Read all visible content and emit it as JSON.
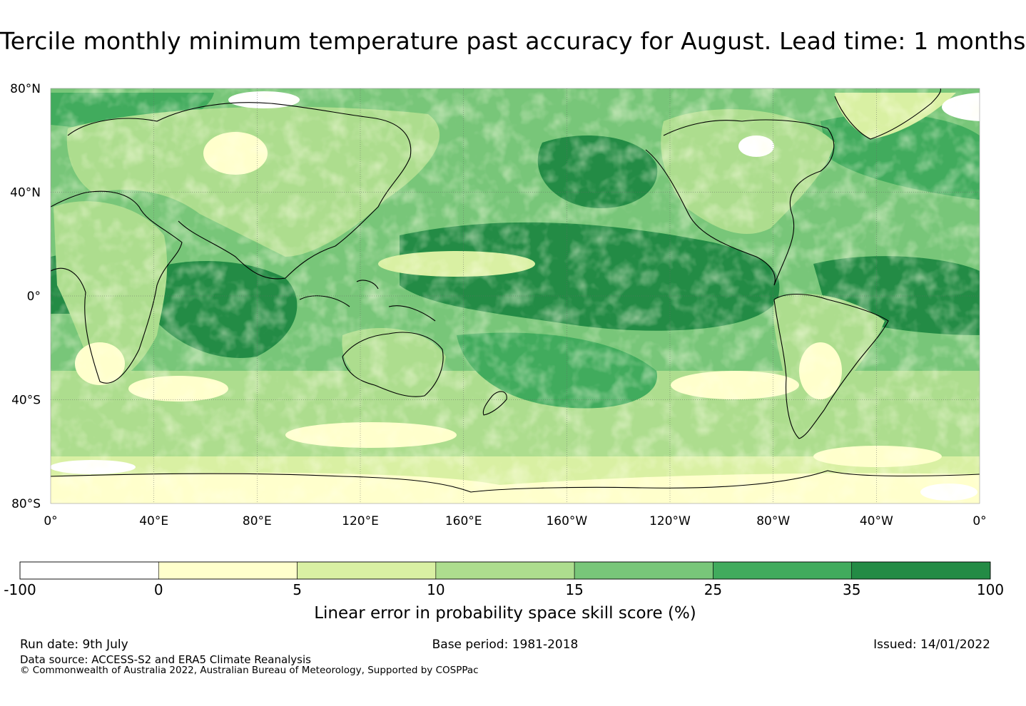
{
  "title": "Tercile monthly minimum temperature past accuracy for August. Lead time: 1 months",
  "map": {
    "lat_labels": [
      "80°N",
      "40°N",
      "0°",
      "40°S",
      "80°S"
    ],
    "lon_labels": [
      "0°",
      "40°E",
      "80°E",
      "120°E",
      "160°E",
      "160°W",
      "120°W",
      "80°W",
      "40°W",
      "0°"
    ],
    "extent_lon": [
      0,
      360
    ],
    "extent_lat": [
      -80,
      80
    ],
    "ocean_high_skill_color": "#238b45",
    "land_low_skill_color": "#ffffcc"
  },
  "colorbar": {
    "ticks": [
      "-100",
      "0",
      "5",
      "10",
      "15",
      "25",
      "35",
      "100"
    ],
    "colors": [
      "#ffffff",
      "#ffffcc",
      "#d9f0a3",
      "#addd8e",
      "#78c679",
      "#41ab5d",
      "#238b45"
    ],
    "label": "Linear error in probability space skill score (%)"
  },
  "footer": {
    "run_date": "Run date: 9th July",
    "base_period": "Base period: 1981-2018",
    "issued": "Issued: 14/01/2022",
    "data_source": "Data source: ACCESS-S2 and ERA5 Climate Reanalysis",
    "copyright": "© Commonwealth of Australia 2022, Australian Bureau of Meteorology, Supported by COSPPac"
  }
}
